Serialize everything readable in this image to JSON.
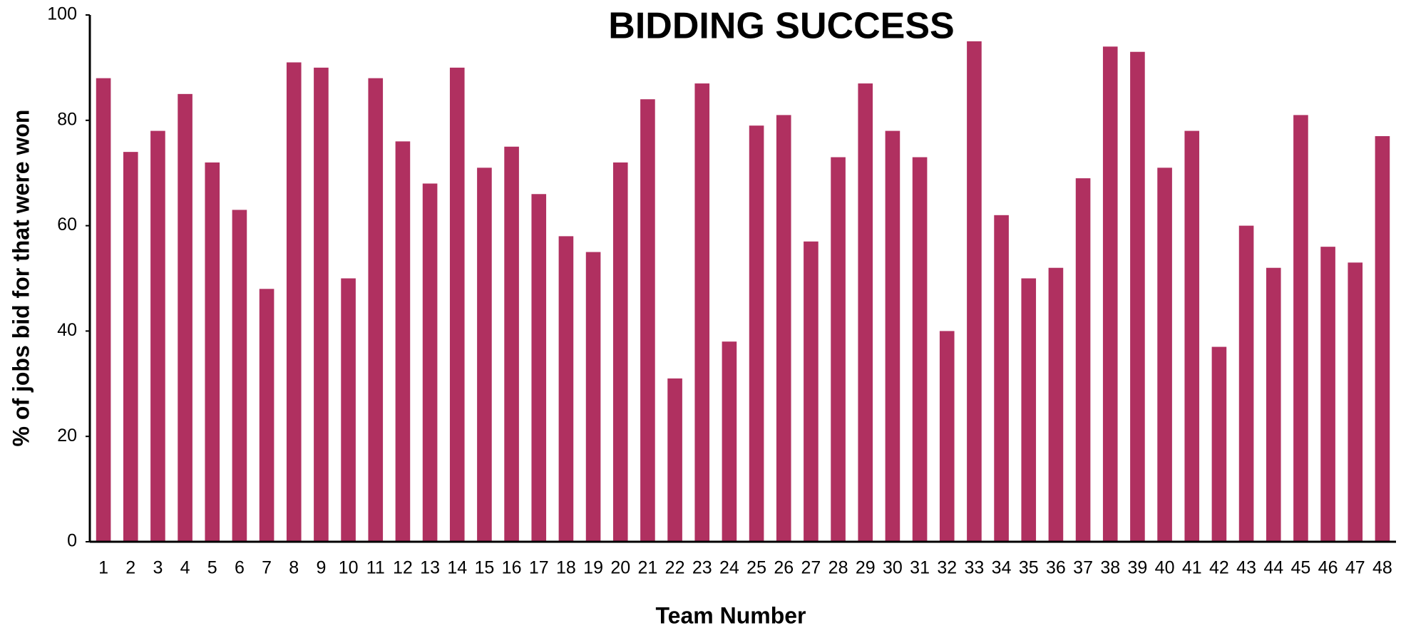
{
  "chart_data": {
    "type": "bar",
    "title": "BIDDING SUCCESS",
    "x_label": "Team Number",
    "y_label": "% of jobs bid for that were won",
    "categories": [
      "1",
      "2",
      "3",
      "4",
      "5",
      "6",
      "7",
      "8",
      "9",
      "10",
      "11",
      "12",
      "13",
      "14",
      "15",
      "16",
      "17",
      "18",
      "19",
      "20",
      "21",
      "22",
      "23",
      "24",
      "25",
      "26",
      "27",
      "28",
      "29",
      "30",
      "31",
      "32",
      "33",
      "34",
      "35",
      "36",
      "37",
      "38",
      "39",
      "40",
      "41",
      "42",
      "43",
      "44",
      "45",
      "46",
      "47",
      "48"
    ],
    "values": [
      88,
      74,
      78,
      85,
      72,
      63,
      48,
      91,
      90,
      50,
      88,
      76,
      68,
      90,
      71,
      75,
      66,
      58,
      55,
      72,
      84,
      31,
      87,
      38,
      79,
      81,
      57,
      73,
      87,
      78,
      73,
      40,
      95,
      62,
      50,
      52,
      69,
      94,
      93,
      71,
      78,
      37,
      60,
      52,
      81,
      56,
      53,
      77
    ],
    "color": "#b03060",
    "ylim": [
      0,
      100
    ],
    "yticks": [
      0,
      20,
      40,
      60,
      80,
      100
    ],
    "grid": false
  }
}
